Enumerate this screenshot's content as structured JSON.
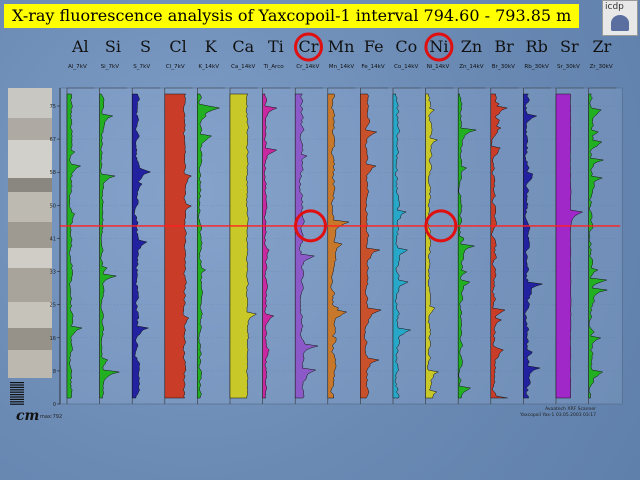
{
  "header": {
    "title": "X-ray fluorescence analysis of Yaxcopoil-1 interval 794.60 - 793.85 m",
    "logo_text": "icdp"
  },
  "footer": {
    "scale_label": "cm",
    "depth_note": "max:792",
    "note_right_1": "Avaatech XRF Scanner",
    "note_right_2": "Yaxcopoil Yax-1  03.05.2003 03:17"
  },
  "colors": {
    "background": "#6f8fb8",
    "title_bg": "#ffff00",
    "highlight_circle": "#e01010",
    "marker_line": "#ff2020"
  },
  "chart_data": {
    "type": "area",
    "y_axis": {
      "ticks": [
        "75",
        "67",
        "58",
        "50",
        "41",
        "33",
        "25",
        "16",
        "8",
        "0"
      ]
    },
    "highlighted_elements": [
      "Cr",
      "Ni"
    ],
    "marker_depth_label": "52",
    "series": [
      {
        "element": "Al",
        "label": "Al_7kV",
        "color": "#22b022"
      },
      {
        "element": "Si",
        "label": "Si_7kV",
        "color": "#22b022"
      },
      {
        "element": "S",
        "label": "S_7kV",
        "color": "#2222a0"
      },
      {
        "element": "Cl",
        "label": "Cl_7kV",
        "color": "#c83c28"
      },
      {
        "element": "K",
        "label": "K_14kV",
        "color": "#22b022"
      },
      {
        "element": "Ca",
        "label": "Ca_14kV",
        "color": "#c8c828"
      },
      {
        "element": "Ti",
        "label": "Ti_Arco",
        "color": "#c828a0"
      },
      {
        "element": "Cr",
        "label": "Cr_14kV",
        "color": "#8c5ac8"
      },
      {
        "element": "Mn",
        "label": "Mn_14kV",
        "color": "#c8782a"
      },
      {
        "element": "Fe",
        "label": "Fe_14kV",
        "color": "#c8502a"
      },
      {
        "element": "Co",
        "label": "Co_14kV",
        "color": "#28a8c8"
      },
      {
        "element": "Ni",
        "label": "Ni_14kV",
        "color": "#c8c828"
      },
      {
        "element": "Zn",
        "label": "Zn_14kV",
        "color": "#22b022"
      },
      {
        "element": "Br",
        "label": "Br_30kV",
        "color": "#c83c28"
      },
      {
        "element": "Rb",
        "label": "Rb_30kV",
        "color": "#2222a0"
      },
      {
        "element": "Sr",
        "label": "Sr_30kV",
        "color": "#a028c8"
      },
      {
        "element": "Zr",
        "label": "Zr_30kV",
        "color": "#22b022"
      }
    ]
  }
}
